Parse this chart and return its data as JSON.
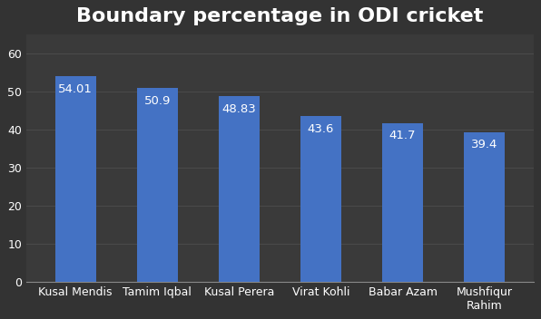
{
  "title": "Boundary percentage in ODI cricket",
  "categories": [
    "Kusal Mendis",
    "Tamim Iqbal",
    "Kusal Perera",
    "Virat Kohli",
    "Babar Azam",
    "Mushfiqur\nRahim"
  ],
  "values": [
    54.01,
    50.9,
    48.83,
    43.6,
    41.7,
    39.4
  ],
  "labels": [
    "54.01",
    "50.9",
    "48.83",
    "43.6",
    "41.7",
    "39.4"
  ],
  "bar_color": "#4472C4",
  "background_color": "#333333",
  "axes_color": "#3a3a3a",
  "text_color": "#ffffff",
  "title_fontsize": 16,
  "label_fontsize": 9.5,
  "tick_fontsize": 9,
  "ylim": [
    0,
    65
  ],
  "yticks": [
    0,
    10,
    20,
    30,
    40,
    50,
    60
  ],
  "grid_color": "#4a4a4a",
  "bar_width": 0.5
}
